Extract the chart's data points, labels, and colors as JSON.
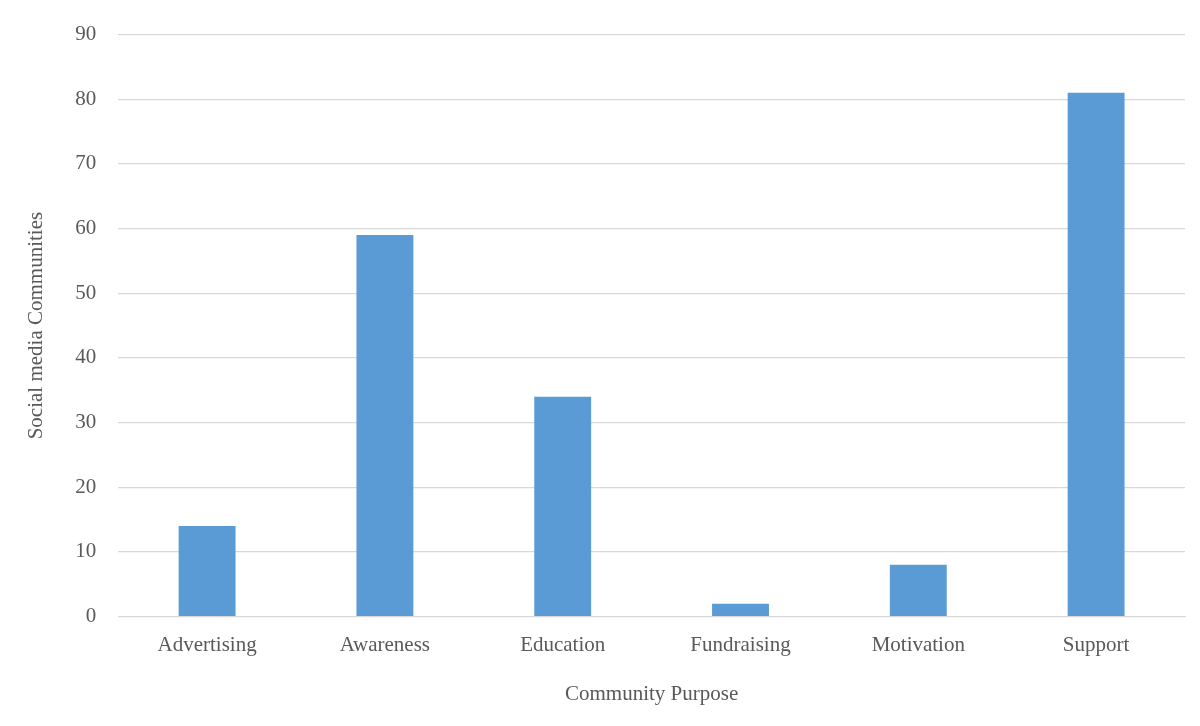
{
  "chart_data": {
    "type": "bar",
    "xlabel": "Community Purpose",
    "ylabel": "Social media Communities",
    "categories": [
      "Advertising",
      "Awareness",
      "Education",
      "Fundraising",
      "Motivation",
      "Support"
    ],
    "values": [
      14,
      59,
      34,
      2,
      8,
      81
    ],
    "color": "#5b9bd5",
    "ylim": [
      0,
      90
    ],
    "yticks": [
      0,
      10,
      20,
      30,
      40,
      50,
      60,
      70,
      80,
      90
    ],
    "grid": "y"
  }
}
